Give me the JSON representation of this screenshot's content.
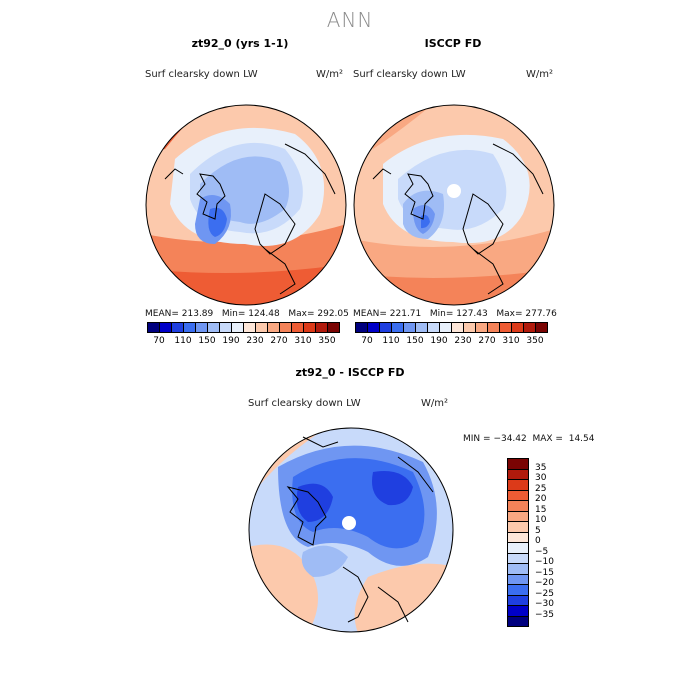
{
  "figure": {
    "title": "ANN"
  },
  "panels": [
    {
      "title": "zt92_0 (yrs 1-1)",
      "variable": "Surf clearsky down LW",
      "unit": "W/m²",
      "stats": {
        "mean_label": "MEAN=",
        "mean": "213.89",
        "min_label": "Min=",
        "min": "124.48",
        "max_label": "Max=",
        "max": "292.05"
      }
    },
    {
      "title": "ISCCP FD",
      "variable": "Surf clearsky down LW",
      "unit": "W/m²",
      "stats": {
        "mean_label": "MEAN=",
        "mean": "221.71",
        "min_label": "Min=",
        "min": "127.43",
        "max_label": "Max=",
        "max": "277.76"
      }
    },
    {
      "title": "zt92_0 - ISCCP FD",
      "variable": "Surf clearsky down LW",
      "unit": "W/m²",
      "stats": {
        "min_label": "MIN =",
        "min": "−34.42",
        "max_label": "MAX =",
        "max": "14.54"
      }
    }
  ],
  "chart_data": [
    {
      "type": "heatmap",
      "title": "zt92_0 (yrs 1-1)",
      "projection": "north polar stereographic",
      "colorbar": {
        "levels": [
          70,
          90,
          110,
          130,
          150,
          170,
          190,
          210,
          230,
          250,
          270,
          290,
          310,
          330,
          350
        ],
        "tick_labels": [
          "70",
          "110",
          "150",
          "190",
          "230",
          "270",
          "310",
          "350"
        ],
        "colors": [
          "#00007f",
          "#0000c8",
          "#1f3fe0",
          "#3b6ef0",
          "#6f96f2",
          "#9fbcf5",
          "#c8dafa",
          "#e8f0fb",
          "#fde6d8",
          "#fcc9ac",
          "#f9a882",
          "#f48359",
          "#ee5c34",
          "#dc3a19",
          "#b11a0c",
          "#7a0403"
        ]
      },
      "stats": {
        "mean": 213.89,
        "min": 124.48,
        "max": 292.05
      }
    },
    {
      "type": "heatmap",
      "title": "ISCCP FD",
      "projection": "north polar stereographic",
      "colorbar": {
        "levels": [
          70,
          90,
          110,
          130,
          150,
          170,
          190,
          210,
          230,
          250,
          270,
          290,
          310,
          330,
          350
        ],
        "tick_labels": [
          "70",
          "110",
          "150",
          "190",
          "230",
          "270",
          "310",
          "350"
        ],
        "colors": [
          "#00007f",
          "#0000c8",
          "#1f3fe0",
          "#3b6ef0",
          "#6f96f2",
          "#9fbcf5",
          "#c8dafa",
          "#e8f0fb",
          "#fde6d8",
          "#fcc9ac",
          "#f9a882",
          "#f48359",
          "#ee5c34",
          "#dc3a19",
          "#b11a0c",
          "#7a0403"
        ]
      },
      "stats": {
        "mean": 221.71,
        "min": 127.43,
        "max": 277.76
      }
    },
    {
      "type": "heatmap",
      "title": "zt92_0 - ISCCP FD",
      "projection": "north polar stereographic",
      "colorbar": {
        "levels": [
          35,
          30,
          25,
          20,
          15,
          10,
          5,
          0,
          -5,
          -10,
          -15,
          -20,
          -25,
          -30,
          -35
        ],
        "tick_labels": [
          "35",
          "30",
          "25",
          "20",
          "15",
          "10",
          "5",
          "0",
          "−5",
          "−10",
          "−15",
          "−20",
          "−25",
          "−30",
          "−35"
        ],
        "colors": [
          "#7a0403",
          "#b11a0c",
          "#dc3a19",
          "#ee5c34",
          "#f48359",
          "#f9a882",
          "#fcc9ac",
          "#fde6d8",
          "#e8f0fb",
          "#c8dafa",
          "#9fbcf5",
          "#6f96f2",
          "#3b6ef0",
          "#1f3fe0",
          "#0000c8",
          "#00007f"
        ]
      },
      "stats": {
        "min": -34.42,
        "max": 14.54
      }
    }
  ]
}
